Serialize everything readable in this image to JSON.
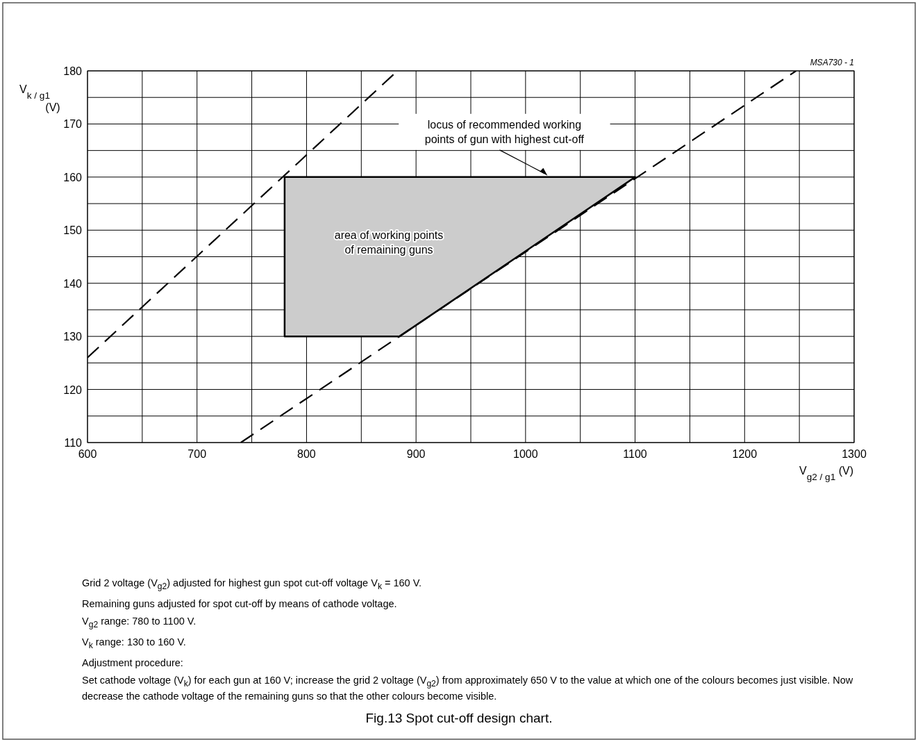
{
  "chart_data": {
    "type": "line",
    "title": "Fig.13  Spot cut-off design chart.",
    "xlabel": "V$_{g2 / g1}$ (V)",
    "ylabel": "V$_{k / g1}$\n(V)",
    "xlim": [
      600,
      1300
    ],
    "ylim": [
      110,
      180
    ],
    "xticks": [
      600,
      {
        "value": 650,
        "label": null
      },
      700,
      {
        "value": 750,
        "label": null
      },
      800,
      {
        "value": 850,
        "label": null
      },
      900,
      {
        "value": 950,
        "label": null
      },
      1000,
      {
        "value": 1050,
        "label": null
      },
      1100,
      {
        "value": 1150,
        "label": null
      },
      1200,
      {
        "value": 1250,
        "label": null
      },
      1300
    ],
    "yticks": [
      110,
      {
        "value": 115,
        "label": null
      },
      120,
      {
        "value": 125,
        "label": null
      },
      130,
      {
        "value": 135,
        "label": null
      },
      140,
      {
        "value": 145,
        "label": null
      },
      150,
      {
        "value": 155,
        "label": null
      },
      160,
      {
        "value": 165,
        "label": null
      },
      170,
      {
        "value": 175,
        "label": null
      },
      180
    ],
    "grid": true,
    "series": [
      {
        "type": "area",
        "color": "#cccccc",
        "x": [
          780,
          780,
          1100,
          885,
          780
        ],
        "values": [
          130,
          160,
          160,
          130,
          130
        ]
      },
      {
        "type": "line",
        "color": "#000000",
        "line_style": "dashed",
        "x": [
          600,
          883
        ],
        "values": [
          126,
          180
        ]
      },
      {
        "type": "line",
        "color": "#000000",
        "line_style": "dashed",
        "x": [
          740,
          1247
        ],
        "values": [
          110,
          180
        ]
      }
    ],
    "annotations": [
      "MSA730 - 1",
      "area of working points\nof remaining guns",
      "Grid 2 voltage (V$_{g2}$) adjusted for highest gun spot cut-off voltage V$_{k}$ = 160 V.",
      "Remaining guns adjusted for spot cut-off by means of cathode voltage.",
      "V$_{g2}$ range: 780 to 1100 V.",
      "V$_{k}$ range: 130 to 160 V.",
      "Adjustment procedure:",
      "Set cathode voltage (V$_{k}$) for each gun at 160 V; increase the grid 2 voltage (V$_{g2}$) from approximately 650 V to the value at which one of the colours becomes just visible. Now decrease the cathode voltage of the remaining guns so that the other colours become visible.",
      {
        "text": "locus of recommended working\npoints of gun with highest cut-off",
        "x": 1020,
        "y": 160
      }
    ]
  }
}
